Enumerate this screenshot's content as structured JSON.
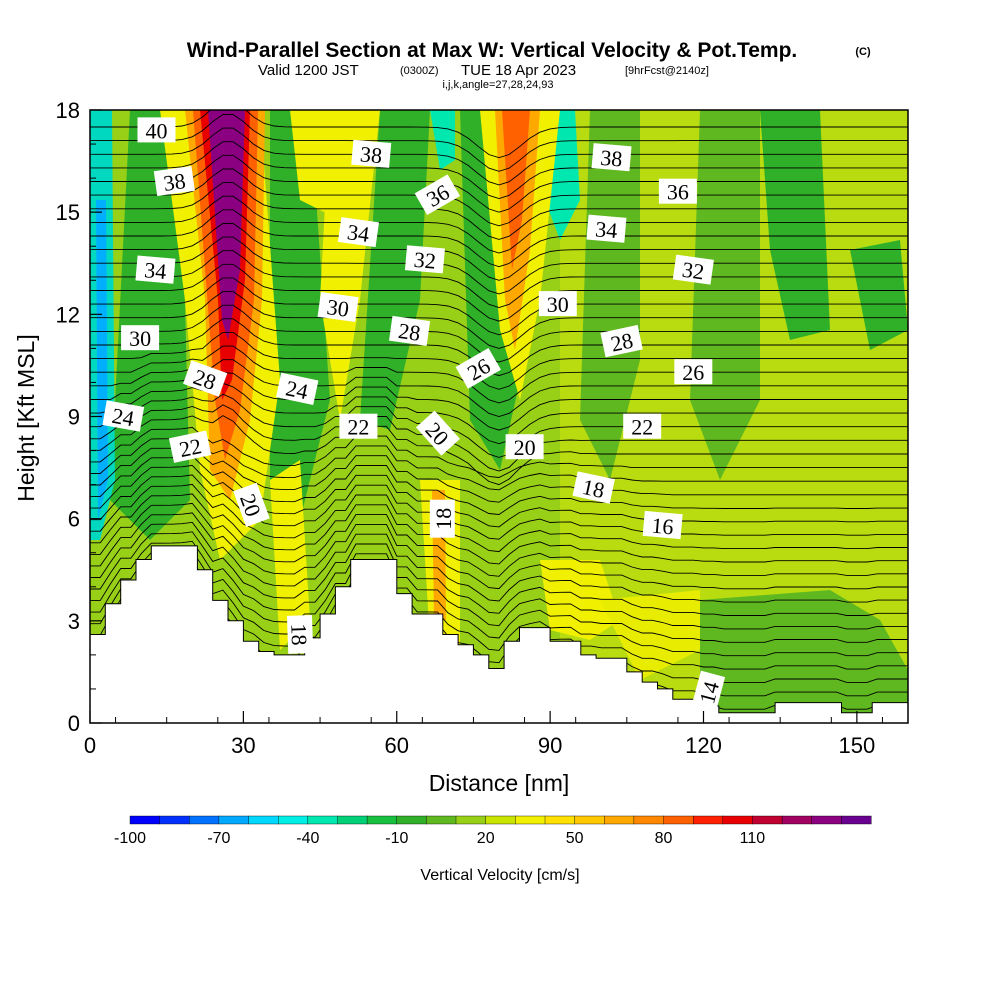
{
  "title_main": "Wind-Parallel Section at Max W: Vertical Velocity & Pot.Temp.",
  "title_copyright": "(C)",
  "sub_valid": "Valid 1200 JST",
  "sub_utc": "(0300Z)",
  "sub_date": "TUE 18 Apr 2023",
  "sub_fcst": "[9hrFcst@2140z]",
  "sub_indices": "i,j,k,angle=27,28,24,93",
  "chart_data": {
    "type": "heatmap",
    "xlabel": "Distance [nm]",
    "ylabel": "Height [Kft MSL]",
    "xlim": [
      0,
      160
    ],
    "ylim": [
      0,
      18
    ],
    "xticks": [
      0,
      30,
      60,
      90,
      120,
      150
    ],
    "xtick_labels": [
      "0",
      "30",
      "60",
      "90",
      "120",
      "150"
    ],
    "yticks": [
      0,
      3,
      6,
      9,
      12,
      15,
      18
    ],
    "ytick_labels": [
      "0",
      "3",
      "6",
      "9",
      "12",
      "15",
      "18"
    ],
    "colorbar": {
      "label": "Vertical Velocity [cm/s]",
      "tick_labels": [
        "-100",
        "-70",
        "-40",
        "-10",
        "20",
        "50",
        "80",
        "110"
      ],
      "colors": [
        "#0000ff",
        "#0030ff",
        "#0070ff",
        "#00a8ff",
        "#00d8ff",
        "#00f0e8",
        "#00e8b0",
        "#00d078",
        "#18c040",
        "#30b028",
        "#60b820",
        "#98d018",
        "#c8e400",
        "#f0f000",
        "#ffe000",
        "#ffc800",
        "#ffa800",
        "#ff8800",
        "#ff6000",
        "#ff2000",
        "#e80000",
        "#c00030",
        "#a00060",
        "#8a0080",
        "#6a0090"
      ]
    },
    "terrain": [
      [
        0,
        2.6
      ],
      [
        3,
        2.6
      ],
      [
        3,
        3.5
      ],
      [
        6,
        3.5
      ],
      [
        6,
        4.2
      ],
      [
        9,
        4.2
      ],
      [
        9,
        4.8
      ],
      [
        12,
        4.8
      ],
      [
        12,
        5.2
      ],
      [
        21,
        5.2
      ],
      [
        21,
        4.5
      ],
      [
        24,
        4.5
      ],
      [
        24,
        3.6
      ],
      [
        27,
        3.6
      ],
      [
        27,
        3.0
      ],
      [
        30,
        3.0
      ],
      [
        30,
        2.4
      ],
      [
        33,
        2.4
      ],
      [
        33,
        2.1
      ],
      [
        36,
        2.1
      ],
      [
        36,
        2.0
      ],
      [
        42,
        2.0
      ],
      [
        42,
        2.5
      ],
      [
        45,
        2.5
      ],
      [
        45,
        3.2
      ],
      [
        48,
        3.2
      ],
      [
        48,
        4.0
      ],
      [
        51,
        4.0
      ],
      [
        51,
        4.8
      ],
      [
        60,
        4.8
      ],
      [
        60,
        3.8
      ],
      [
        63,
        3.8
      ],
      [
        63,
        3.2
      ],
      [
        69,
        3.2
      ],
      [
        69,
        2.6
      ],
      [
        72,
        2.6
      ],
      [
        72,
        2.3
      ],
      [
        75,
        2.3
      ],
      [
        75,
        2.0
      ],
      [
        78,
        2.0
      ],
      [
        78,
        1.6
      ],
      [
        81,
        1.6
      ],
      [
        81,
        2.4
      ],
      [
        84,
        2.4
      ],
      [
        84,
        2.8
      ],
      [
        90,
        2.8
      ],
      [
        90,
        2.4
      ],
      [
        96,
        2.4
      ],
      [
        96,
        2.0
      ],
      [
        99,
        2.0
      ],
      [
        99,
        1.9
      ],
      [
        105,
        1.9
      ],
      [
        105,
        1.5
      ],
      [
        108,
        1.5
      ],
      [
        108,
        1.2
      ],
      [
        111,
        1.2
      ],
      [
        111,
        1.0
      ],
      [
        114,
        1.0
      ],
      [
        114,
        0.7
      ],
      [
        120,
        0.7
      ],
      [
        120,
        0.5
      ],
      [
        123,
        0.5
      ],
      [
        123,
        0.3
      ],
      [
        134,
        0.3
      ],
      [
        134,
        0.6
      ],
      [
        147,
        0.6
      ],
      [
        147,
        0.3
      ],
      [
        153,
        0.3
      ],
      [
        153,
        0.6
      ],
      [
        160,
        0.6
      ]
    ],
    "theta_contour_labels": [
      {
        "text": "40",
        "x": 13,
        "y": 17.4,
        "angle": 0
      },
      {
        "text": "38",
        "x": 16.5,
        "y": 15.9,
        "angle": 8
      },
      {
        "text": "34",
        "x": 12.8,
        "y": 13.3,
        "angle": -5
      },
      {
        "text": "30",
        "x": 9.8,
        "y": 11.3,
        "angle": 0
      },
      {
        "text": "24",
        "x": 6.5,
        "y": 9.0,
        "angle": -10
      },
      {
        "text": "28",
        "x": 22.5,
        "y": 10.1,
        "angle": -20
      },
      {
        "text": "22",
        "x": 19.6,
        "y": 8.1,
        "angle": 12
      },
      {
        "text": "20",
        "x": 31.5,
        "y": 6.4,
        "angle": -70
      },
      {
        "text": "18",
        "x": 41,
        "y": 2.6,
        "angle": -88
      },
      {
        "text": "24",
        "x": 40.5,
        "y": 9.8,
        "angle": -12
      },
      {
        "text": "30",
        "x": 48.5,
        "y": 12.2,
        "angle": -8
      },
      {
        "text": "34",
        "x": 52.5,
        "y": 14.4,
        "angle": -8
      },
      {
        "text": "38",
        "x": 55,
        "y": 16.7,
        "angle": -5
      },
      {
        "text": "22",
        "x": 52.5,
        "y": 8.7,
        "angle": 0
      },
      {
        "text": "28",
        "x": 62.5,
        "y": 11.5,
        "angle": -8
      },
      {
        "text": "32",
        "x": 65.5,
        "y": 13.6,
        "angle": -5
      },
      {
        "text": "36",
        "x": 68,
        "y": 15.5,
        "angle": 30
      },
      {
        "text": "20",
        "x": 68,
        "y": 8.5,
        "angle": -48
      },
      {
        "text": "18",
        "x": 69,
        "y": 6.0,
        "angle": 90
      },
      {
        "text": "26",
        "x": 76,
        "y": 10.4,
        "angle": 30
      },
      {
        "text": "20",
        "x": 85,
        "y": 8.1,
        "angle": 0
      },
      {
        "text": "30",
        "x": 91.5,
        "y": 12.3,
        "angle": 0
      },
      {
        "text": "34",
        "x": 101,
        "y": 14.5,
        "angle": -5
      },
      {
        "text": "38",
        "x": 102,
        "y": 16.6,
        "angle": -5
      },
      {
        "text": "28",
        "x": 104,
        "y": 11.2,
        "angle": 12
      },
      {
        "text": "18",
        "x": 98.5,
        "y": 6.9,
        "angle": -12
      },
      {
        "text": "22",
        "x": 108,
        "y": 8.7,
        "angle": 0
      },
      {
        "text": "36",
        "x": 115,
        "y": 15.6,
        "angle": 0
      },
      {
        "text": "32",
        "x": 118,
        "y": 13.3,
        "angle": -8
      },
      {
        "text": "26",
        "x": 118,
        "y": 10.3,
        "angle": 0
      },
      {
        "text": "16",
        "x": 112,
        "y": 5.8,
        "angle": -5
      },
      {
        "text": "14",
        "x": 121,
        "y": 0.9,
        "angle": 75
      }
    ]
  }
}
